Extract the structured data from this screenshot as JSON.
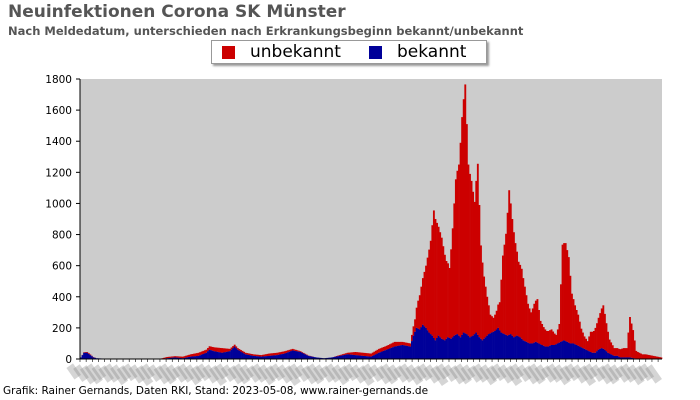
{
  "chart_data": {
    "type": "bar",
    "stacked": true,
    "title": "Neuinfektionen Corona SK Münster",
    "subtitle": "Nach Meldedatum, unterschieden nach Erkrankungsbeginn bekannt/unbekannt",
    "ylim": [
      0,
      1800
    ],
    "yticks": [
      0,
      200,
      400,
      600,
      800,
      1000,
      1200,
      1400,
      1600,
      1800
    ],
    "grid": false,
    "legend_position": "top-center",
    "colors": {
      "unbekannt": "#cc0000",
      "bekannt": "#000099",
      "plot_bg": "#cccccc"
    },
    "series": [
      {
        "name": "unbekannt",
        "color": "#cc0000",
        "anchors": [
          [
            0,
            0
          ],
          [
            3,
            5
          ],
          [
            5,
            5
          ],
          [
            10,
            0
          ],
          [
            20,
            0
          ],
          [
            40,
            0
          ],
          [
            50,
            0
          ],
          [
            55,
            8
          ],
          [
            60,
            8
          ],
          [
            65,
            10
          ],
          [
            70,
            15
          ],
          [
            75,
            20
          ],
          [
            80,
            20
          ],
          [
            85,
            25
          ],
          [
            90,
            30
          ],
          [
            95,
            15
          ],
          [
            100,
            10
          ],
          [
            110,
            10
          ],
          [
            115,
            10
          ],
          [
            120,
            15
          ],
          [
            125,
            15
          ],
          [
            130,
            15
          ],
          [
            135,
            10
          ],
          [
            140,
            5
          ],
          [
            150,
            0
          ],
          [
            160,
            0
          ],
          [
            165,
            5
          ],
          [
            170,
            10
          ],
          [
            175,
            20
          ],
          [
            180,
            20
          ],
          [
            185,
            20
          ],
          [
            190,
            25
          ],
          [
            195,
            25
          ],
          [
            200,
            30
          ],
          [
            205,
            20
          ],
          [
            210,
            20
          ],
          [
            213,
            80
          ],
          [
            215,
            180
          ],
          [
            218,
            300
          ],
          [
            220,
            400
          ],
          [
            223,
            600
          ],
          [
            225,
            820
          ],
          [
            228,
            700
          ],
          [
            230,
            650
          ],
          [
            233,
            500
          ],
          [
            235,
            450
          ],
          [
            237,
            700
          ],
          [
            239,
            1000
          ],
          [
            241,
            1100
          ],
          [
            243,
            1400
          ],
          [
            245,
            1600
          ],
          [
            247,
            1100
          ],
          [
            249,
            1000
          ],
          [
            251,
            850
          ],
          [
            253,
            1100
          ],
          [
            255,
            600
          ],
          [
            257,
            400
          ],
          [
            259,
            250
          ],
          [
            261,
            120
          ],
          [
            263,
            90
          ],
          [
            265,
            120
          ],
          [
            267,
            180
          ],
          [
            269,
            500
          ],
          [
            271,
            650
          ],
          [
            273,
            930
          ],
          [
            275,
            750
          ],
          [
            277,
            600
          ],
          [
            279,
            480
          ],
          [
            281,
            450
          ],
          [
            283,
            350
          ],
          [
            285,
            250
          ],
          [
            287,
            200
          ],
          [
            289,
            250
          ],
          [
            291,
            280
          ],
          [
            293,
            150
          ],
          [
            295,
            120
          ],
          [
            297,
            100
          ],
          [
            300,
            100
          ],
          [
            303,
            60
          ],
          [
            305,
            120
          ],
          [
            307,
            620
          ],
          [
            309,
            630
          ],
          [
            311,
            550
          ],
          [
            313,
            320
          ],
          [
            315,
            250
          ],
          [
            317,
            200
          ],
          [
            319,
            120
          ],
          [
            321,
            80
          ],
          [
            323,
            60
          ],
          [
            325,
            130
          ],
          [
            327,
            140
          ],
          [
            329,
            180
          ],
          [
            331,
            230
          ],
          [
            333,
            280
          ],
          [
            335,
            180
          ],
          [
            337,
            90
          ],
          [
            340,
            50
          ],
          [
            343,
            50
          ],
          [
            346,
            60
          ],
          [
            348,
            60
          ],
          [
            350,
            260
          ],
          [
            352,
            180
          ],
          [
            354,
            50
          ],
          [
            356,
            40
          ],
          [
            358,
            30
          ],
          [
            360,
            30
          ],
          [
            365,
            20
          ],
          [
            370,
            10
          ]
        ]
      },
      {
        "name": "bekannt",
        "color": "#000099",
        "anchors": [
          [
            0,
            10
          ],
          [
            2,
            40
          ],
          [
            4,
            40
          ],
          [
            6,
            25
          ],
          [
            8,
            10
          ],
          [
            10,
            5
          ],
          [
            20,
            0
          ],
          [
            30,
            0
          ],
          [
            40,
            0
          ],
          [
            50,
            0
          ],
          [
            55,
            5
          ],
          [
            60,
            10
          ],
          [
            65,
            5
          ],
          [
            70,
            15
          ],
          [
            75,
            20
          ],
          [
            80,
            40
          ],
          [
            82,
            60
          ],
          [
            85,
            50
          ],
          [
            90,
            40
          ],
          [
            95,
            50
          ],
          [
            98,
            80
          ],
          [
            100,
            60
          ],
          [
            105,
            30
          ],
          [
            110,
            20
          ],
          [
            115,
            15
          ],
          [
            120,
            20
          ],
          [
            125,
            25
          ],
          [
            130,
            35
          ],
          [
            135,
            55
          ],
          [
            140,
            45
          ],
          [
            145,
            20
          ],
          [
            150,
            10
          ],
          [
            155,
            5
          ],
          [
            160,
            10
          ],
          [
            165,
            20
          ],
          [
            170,
            30
          ],
          [
            175,
            25
          ],
          [
            180,
            20
          ],
          [
            185,
            15
          ],
          [
            190,
            40
          ],
          [
            195,
            60
          ],
          [
            200,
            80
          ],
          [
            205,
            90
          ],
          [
            210,
            80
          ],
          [
            212,
            150
          ],
          [
            214,
            200
          ],
          [
            216,
            190
          ],
          [
            218,
            220
          ],
          [
            220,
            200
          ],
          [
            222,
            170
          ],
          [
            224,
            150
          ],
          [
            226,
            120
          ],
          [
            228,
            150
          ],
          [
            230,
            130
          ],
          [
            232,
            120
          ],
          [
            234,
            140
          ],
          [
            236,
            130
          ],
          [
            238,
            150
          ],
          [
            240,
            160
          ],
          [
            242,
            140
          ],
          [
            244,
            170
          ],
          [
            246,
            160
          ],
          [
            248,
            140
          ],
          [
            250,
            150
          ],
          [
            252,
            170
          ],
          [
            254,
            140
          ],
          [
            256,
            120
          ],
          [
            258,
            140
          ],
          [
            260,
            160
          ],
          [
            262,
            170
          ],
          [
            264,
            180
          ],
          [
            266,
            200
          ],
          [
            268,
            170
          ],
          [
            270,
            160
          ],
          [
            272,
            150
          ],
          [
            274,
            160
          ],
          [
            276,
            140
          ],
          [
            278,
            150
          ],
          [
            280,
            140
          ],
          [
            282,
            120
          ],
          [
            284,
            110
          ],
          [
            286,
            100
          ],
          [
            288,
            100
          ],
          [
            290,
            110
          ],
          [
            292,
            100
          ],
          [
            294,
            90
          ],
          [
            296,
            80
          ],
          [
            298,
            80
          ],
          [
            300,
            90
          ],
          [
            302,
            90
          ],
          [
            304,
            100
          ],
          [
            306,
            110
          ],
          [
            308,
            120
          ],
          [
            310,
            110
          ],
          [
            312,
            100
          ],
          [
            314,
            100
          ],
          [
            316,
            90
          ],
          [
            318,
            80
          ],
          [
            320,
            70
          ],
          [
            322,
            60
          ],
          [
            324,
            50
          ],
          [
            326,
            40
          ],
          [
            328,
            40
          ],
          [
            330,
            60
          ],
          [
            332,
            70
          ],
          [
            334,
            60
          ],
          [
            336,
            40
          ],
          [
            338,
            30
          ],
          [
            340,
            20
          ],
          [
            342,
            20
          ],
          [
            344,
            10
          ],
          [
            346,
            10
          ],
          [
            350,
            10
          ],
          [
            355,
            0
          ],
          [
            360,
            0
          ],
          [
            370,
            0
          ]
        ]
      }
    ]
  },
  "footer": "Grafik: Rainer Gernands, Daten RKI, Stand: 2023-05-08, www.rainer-gernands.de"
}
